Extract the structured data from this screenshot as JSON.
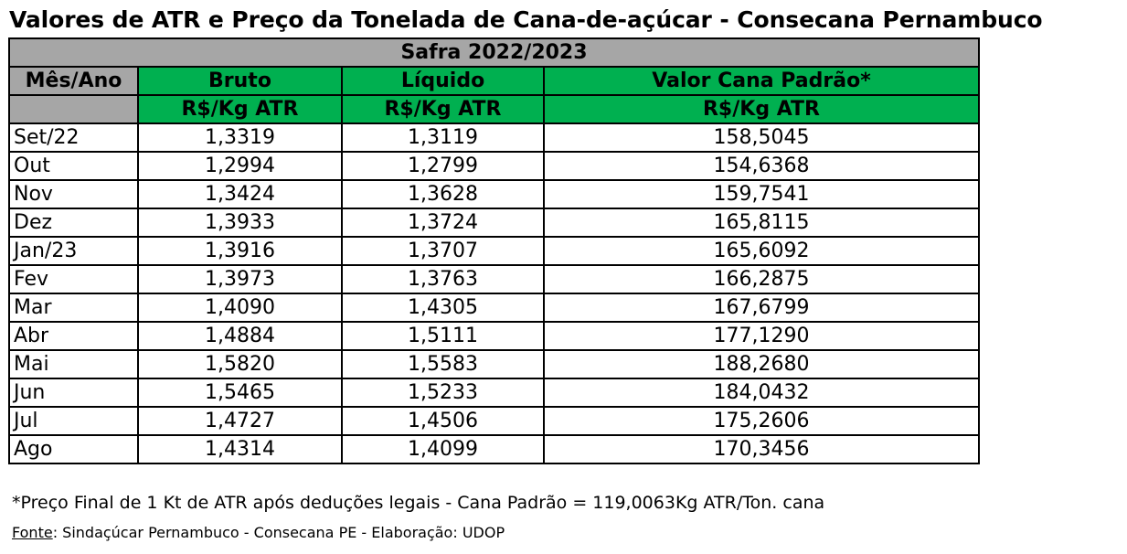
{
  "title": "Valores de ATR e Preço da Tonelada de Cana-de-açúcar - Consecana Pernambuco",
  "table": {
    "season": "Safra 2022/2023",
    "headers": {
      "month": "Mês/Ano",
      "bruto": "Bruto",
      "liquido": "Líquido",
      "valor": "Valor Cana Padrão*",
      "unit_bruto": "R$/Kg  ATR",
      "unit_liquido": "R$/Kg  ATR",
      "unit_valor": "R$/Kg  ATR"
    },
    "rows": [
      {
        "month": "Set/22",
        "bruto": "1,3319",
        "liquido": "1,3119",
        "valor": "158,5045"
      },
      {
        "month": "Out",
        "bruto": "1,2994",
        "liquido": "1,2799",
        "valor": "154,6368"
      },
      {
        "month": "Nov",
        "bruto": "1,3424",
        "liquido": "1,3628",
        "valor": "159,7541"
      },
      {
        "month": "Dez",
        "bruto": "1,3933",
        "liquido": "1,3724",
        "valor": "165,8115"
      },
      {
        "month": "Jan/23",
        "bruto": "1,3916",
        "liquido": "1,3707",
        "valor": "165,6092"
      },
      {
        "month": "Fev",
        "bruto": "1,3973",
        "liquido": "1,3763",
        "valor": "166,2875"
      },
      {
        "month": "Mar",
        "bruto": "1,4090",
        "liquido": "1,4305",
        "valor": "167,6799"
      },
      {
        "month": "Abr",
        "bruto": "1,4884",
        "liquido": "1,5111",
        "valor": "177,1290"
      },
      {
        "month": "Mai",
        "bruto": "1,5820",
        "liquido": "1,5583",
        "valor": "188,2680"
      },
      {
        "month": "Jun",
        "bruto": "1,5465",
        "liquido": "1,5233",
        "valor": "184,0432"
      },
      {
        "month": "Jul",
        "bruto": "1,4727",
        "liquido": "1,4506",
        "valor": "175,2606"
      },
      {
        "month": "Ago",
        "bruto": "1,4314",
        "liquido": "1,4099",
        "valor": "170,3456"
      }
    ]
  },
  "footnote": "*Preço Final de 1 Kt de ATR após deduções legais - Cana Padrão = 119,0063Kg ATR/Ton. cana",
  "source": {
    "label": "Fonte",
    "text": ": Sindaçúcar Pernambuco - Consecana PE - Elaboração: UDOP"
  },
  "colors": {
    "header_grey": "#a6a6a6",
    "header_green": "#00b050"
  }
}
